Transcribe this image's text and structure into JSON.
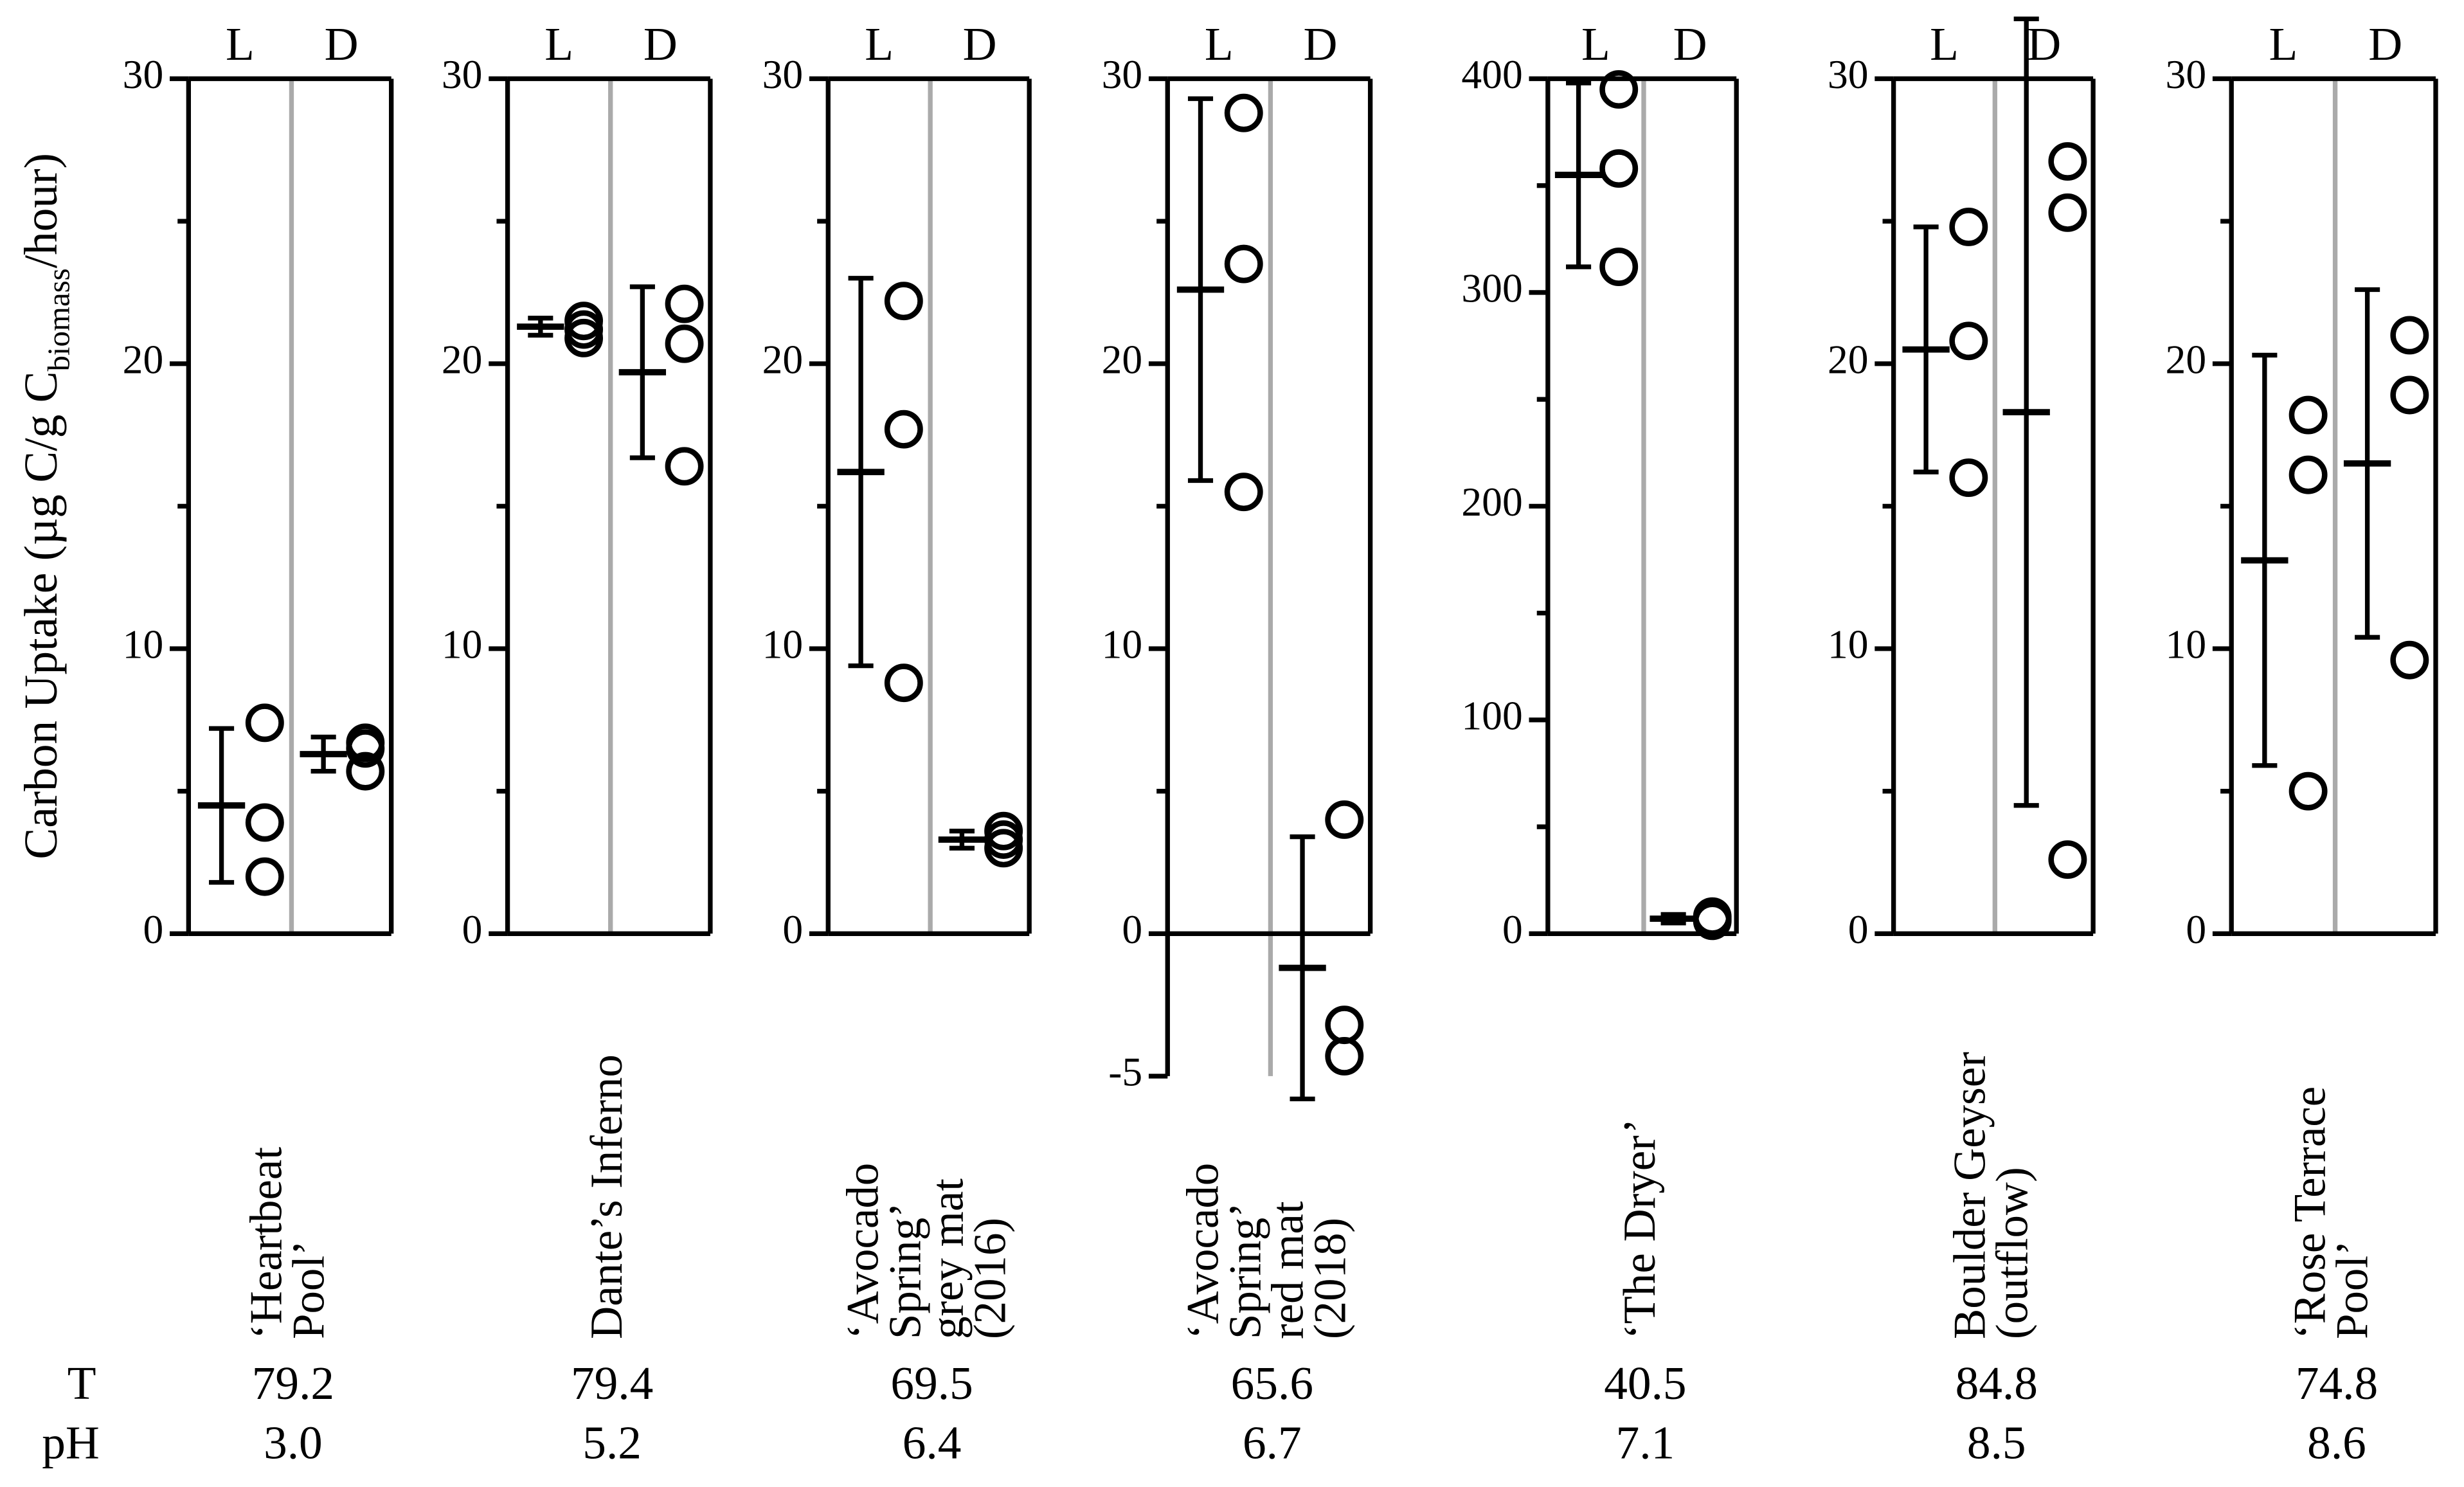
{
  "y_label": {
    "before": "Carbon Uptake (µg C/g C",
    "sub": "biomass",
    "after": "/hour)"
  },
  "row_labels": {
    "T": "T",
    "pH": "pH"
  },
  "chart_data": [
    {
      "type": "dotplot",
      "site": [
        "‘Heartbeat",
        "Pool’"
      ],
      "T": "79.2",
      "pH": "3.0",
      "categories": [
        "L",
        "D"
      ],
      "points": [
        [
          7.4,
          3.9,
          2.0
        ],
        [
          6.7,
          6.5,
          5.7
        ]
      ],
      "mean": [
        4.5,
        6.3
      ],
      "error": [
        2.7,
        0.6
      ],
      "ylim": [
        0,
        30
      ],
      "yticks": [
        0,
        10,
        20,
        30
      ],
      "minor_yticks": [
        5,
        15,
        25
      ]
    },
    {
      "type": "dotplot",
      "site": [
        "Dante’s Inferno"
      ],
      "T": "79.4",
      "pH": "5.2",
      "categories": [
        "L",
        "D"
      ],
      "points": [
        [
          21.5,
          21.2,
          20.9
        ],
        [
          22.1,
          20.7,
          16.4
        ]
      ],
      "mean": [
        21.3,
        19.7
      ],
      "error": [
        0.3,
        3.0
      ],
      "ylim": [
        0,
        30
      ],
      "yticks": [
        0,
        10,
        20,
        30
      ],
      "minor_yticks": [
        5,
        15,
        25
      ]
    },
    {
      "type": "dotplot",
      "site": [
        "‘Avocado",
        "Spring’",
        "grey mat",
        "(2016)"
      ],
      "T": "69.5",
      "pH": "6.4",
      "categories": [
        "L",
        "D"
      ],
      "points": [
        [
          22.2,
          17.7,
          8.8
        ],
        [
          3.6,
          3.3,
          3.0
        ]
      ],
      "mean": [
        16.2,
        3.3
      ],
      "error": [
        6.8,
        0.3
      ],
      "ylim": [
        0,
        30
      ],
      "yticks": [
        0,
        10,
        20,
        30
      ],
      "minor_yticks": [
        5,
        15,
        25
      ]
    },
    {
      "type": "dotplot",
      "site": [
        "‘Avocado",
        "Spring’",
        "red mat",
        "(2018)"
      ],
      "T": "65.6",
      "pH": "6.7",
      "categories": [
        "L",
        "D"
      ],
      "points": [
        [
          28.8,
          23.5,
          15.5
        ],
        [
          4.0,
          -3.2,
          -4.3
        ]
      ],
      "mean": [
        22.6,
        -1.2
      ],
      "error": [
        6.7,
        4.6
      ],
      "ylim": [
        -5,
        30
      ],
      "yticks": [
        -5,
        0,
        10,
        20,
        30
      ],
      "minor_yticks": [
        5,
        15,
        25
      ]
    },
    {
      "type": "dotplot",
      "site": [
        "‘The Dryer’"
      ],
      "T": "40.5",
      "pH": "7.1",
      "categories": [
        "L",
        "D"
      ],
      "points": [
        [
          395,
          358,
          312
        ],
        [
          8,
          7,
          6
        ]
      ],
      "mean": [
        355,
        7
      ],
      "error": [
        43,
        2
      ],
      "ylim": [
        0,
        400
      ],
      "yticks": [
        0,
        100,
        200,
        300,
        400
      ],
      "minor_yticks": [
        50,
        150,
        250,
        350
      ]
    },
    {
      "type": "dotplot",
      "site": [
        "Boulder Geyser",
        "(outflow)"
      ],
      "T": "84.8",
      "pH": "8.5",
      "categories": [
        "L",
        "D"
      ],
      "points": [
        [
          24.8,
          20.8,
          16.0
        ],
        [
          27.1,
          25.3,
          2.6
        ]
      ],
      "mean": [
        20.5,
        18.3
      ],
      "error": [
        4.3,
        13.8
      ],
      "ylim": [
        0,
        30
      ],
      "yticks": [
        0,
        10,
        20,
        30
      ],
      "minor_yticks": [
        5,
        15,
        25
      ]
    },
    {
      "type": "dotplot",
      "site": [
        "‘Rose Terrace",
        "Pool’"
      ],
      "T": "74.8",
      "pH": "8.6",
      "categories": [
        "L",
        "D"
      ],
      "points": [
        [
          18.2,
          16.1,
          5.0
        ],
        [
          21.0,
          18.9,
          9.6
        ]
      ],
      "mean": [
        13.1,
        16.5
      ],
      "error": [
        7.2,
        6.1
      ],
      "ylim": [
        0,
        30
      ],
      "yticks": [
        0,
        10,
        20,
        30
      ],
      "minor_yticks": [
        5,
        15,
        25
      ]
    }
  ]
}
